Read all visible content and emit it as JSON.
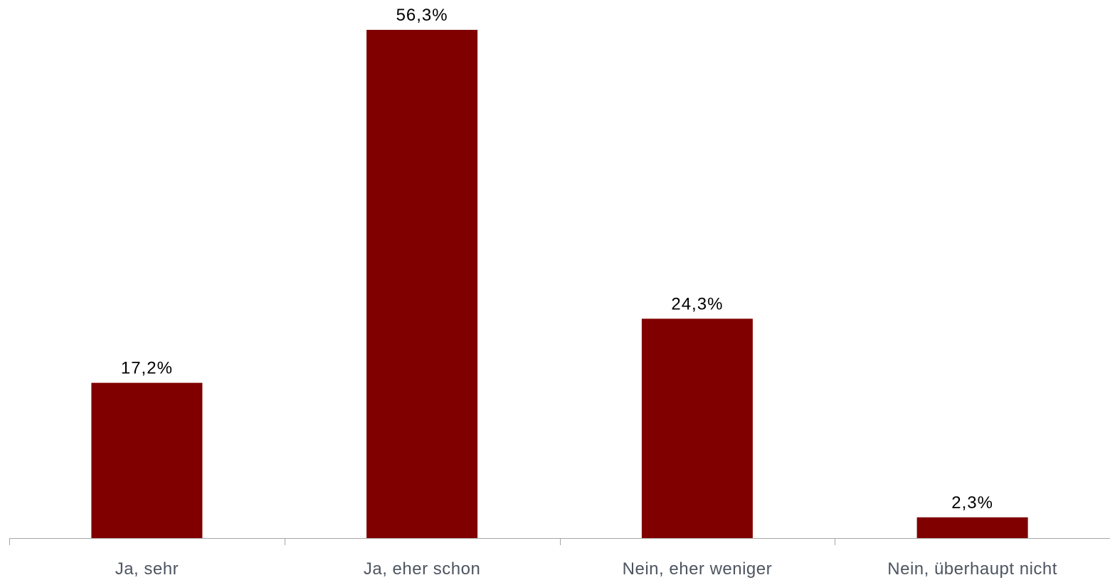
{
  "chart_data": {
    "type": "bar",
    "categories": [
      "Ja, sehr",
      "Ja, eher schon",
      "Nein, eher weniger",
      "Nein, überhaupt nicht"
    ],
    "values": [
      17.2,
      56.3,
      24.3,
      2.3
    ],
    "data_labels": [
      "17,2%",
      "56,3%",
      "24,3%",
      "2,3%"
    ],
    "title": "",
    "xlabel": "",
    "ylabel": "",
    "ylim": [
      0,
      56.3
    ],
    "grid": false,
    "legend": "none",
    "bar_color": "#800000",
    "axis_color": "#a6a6a6"
  }
}
